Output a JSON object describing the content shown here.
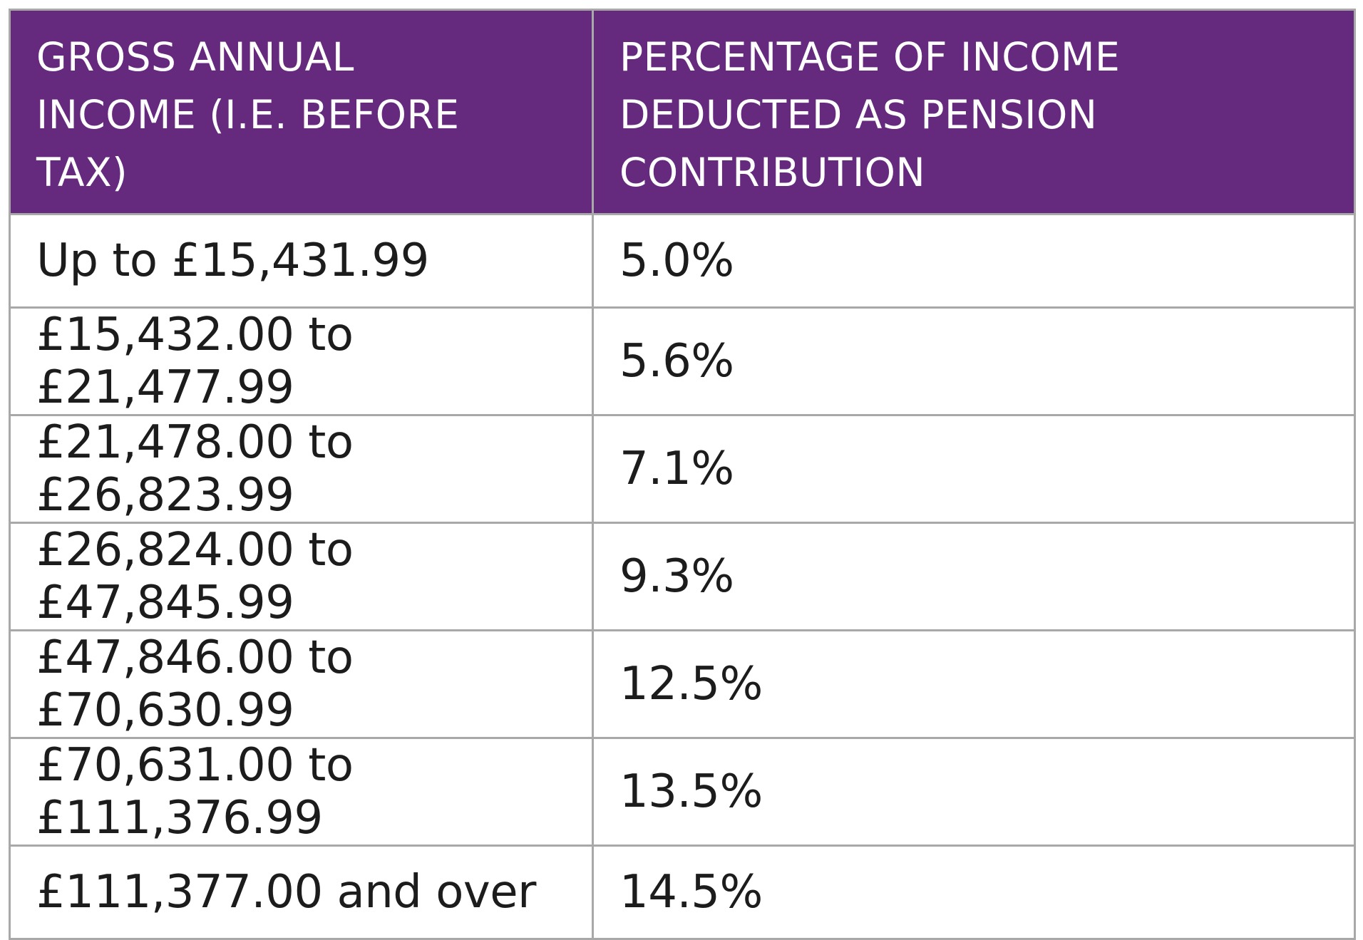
{
  "table": {
    "headers": [
      [
        "GROSS ANNUAL",
        "INCOME (I.E. BEFORE",
        "TAX)"
      ],
      [
        "PERCENTAGE OF INCOME",
        "DEDUCTED AS PENSION",
        "CONTRIBUTION"
      ]
    ],
    "rows": [
      {
        "income": "Up to £15,431.99",
        "percentage": "5.0%"
      },
      {
        "income": "£15,432.00 to £21,477.99",
        "percentage": "5.6%"
      },
      {
        "income": "£21,478.00 to £26,823.99",
        "percentage": "7.1%"
      },
      {
        "income": "£26,824.00 to £47,845.99",
        "percentage": "9.3%"
      },
      {
        "income": "£47,846.00 to £70,630.99",
        "percentage": "12.5%"
      },
      {
        "income": "£70,631.00 to £111,376.99",
        "percentage": "13.5%"
      },
      {
        "income": "£111,377.00 and over",
        "percentage": "14.5%"
      }
    ]
  },
  "colors": {
    "header_background": "#652a7e",
    "header_text": "#ffffff",
    "border": "#a8a8a8",
    "body_text": "#1c1c1c"
  }
}
